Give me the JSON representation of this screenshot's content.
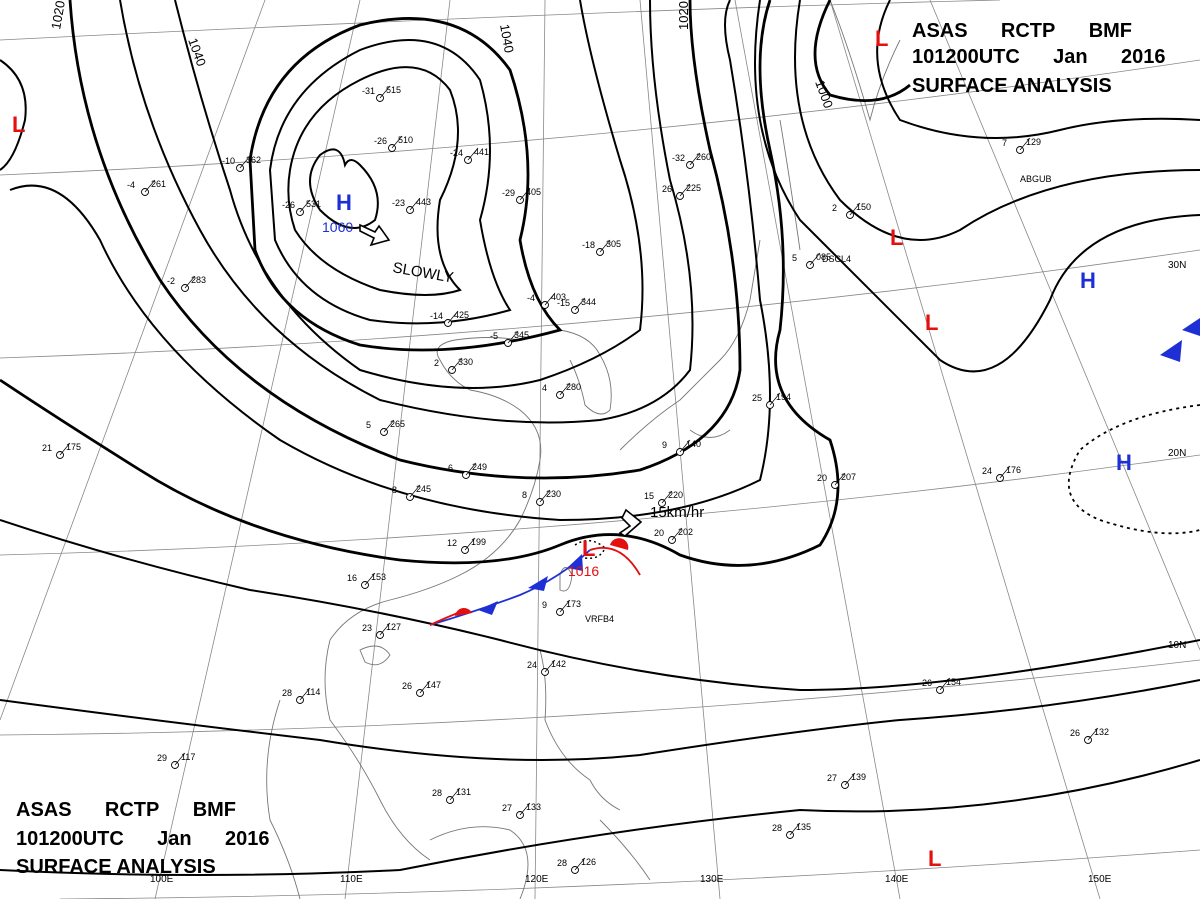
{
  "header": {
    "top_right": {
      "line1": "ASAS RCTP BMF",
      "line2": "101200UTC Jan 2016",
      "line3": "SURFACE ANALYSIS"
    },
    "bottom_left": {
      "line1": "ASAS RCTP BMF",
      "line2": "101200UTC Jan 2016",
      "line3": "SURFACE ANALYSIS"
    }
  },
  "colors": {
    "high": "#1e2fd6",
    "low": "#e31010",
    "isobar": "#000000",
    "grid": "#777777",
    "coast": "#777777"
  },
  "isobar_labels": [
    "1020",
    "1040",
    "1040",
    "1020",
    "1000",
    "1060"
  ],
  "longitude_labels": [
    "100E",
    "110E",
    "120E",
    "130E",
    "140E",
    "150E"
  ],
  "latitude_labels": [
    "30N",
    "20N",
    "10N"
  ],
  "systems": [
    {
      "type": "H",
      "pressure": "1060"
    },
    {
      "type": "L",
      "pressure": "1016"
    },
    {
      "type": "H"
    },
    {
      "type": "H"
    },
    {
      "type": "L"
    },
    {
      "type": "L"
    },
    {
      "type": "L"
    },
    {
      "type": "L"
    }
  ],
  "annotations": {
    "slowly": "SLOWLY",
    "speed": "15km/hr"
  },
  "stations": [
    {
      "temp": "-31",
      "pressure": "515"
    },
    {
      "temp": "-26",
      "pressure": "510"
    },
    {
      "temp": "-26",
      "pressure": "531"
    },
    {
      "temp": "-23",
      "pressure": "443"
    },
    {
      "temp": "-10",
      "pressure": "362"
    },
    {
      "temp": "-4",
      "pressure": "261"
    },
    {
      "temp": "-2",
      "pressure": "283"
    },
    {
      "temp": "-24",
      "pressure": "441"
    },
    {
      "temp": "-29",
      "pressure": "405"
    },
    {
      "temp": "-18",
      "pressure": "305"
    },
    {
      "temp": "-32",
      "pressure": "260"
    },
    {
      "temp": "-14",
      "pressure": "425"
    },
    {
      "temp": "-4",
      "pressure": "403"
    },
    {
      "temp": "-15",
      "pressure": "344"
    },
    {
      "temp": "-5",
      "pressure": "345"
    },
    {
      "temp": "2",
      "pressure": "330"
    },
    {
      "temp": "4",
      "pressure": "280"
    },
    {
      "temp": "5",
      "pressure": "265"
    },
    {
      "temp": "6",
      "pressure": "249"
    },
    {
      "temp": "8",
      "pressure": "245"
    },
    {
      "temp": "8",
      "pressure": "230"
    },
    {
      "temp": "12",
      "pressure": "199"
    },
    {
      "temp": "15",
      "pressure": "220"
    },
    {
      "temp": "20",
      "pressure": "202"
    },
    {
      "temp": "21",
      "pressure": "175"
    },
    {
      "temp": "16",
      "pressure": "153"
    },
    {
      "temp": "23",
      "pressure": "127"
    },
    {
      "temp": "26",
      "pressure": "147"
    },
    {
      "temp": "28",
      "pressure": "114"
    },
    {
      "temp": "24",
      "pressure": "142"
    },
    {
      "temp": "29",
      "pressure": "117"
    },
    {
      "temp": "28",
      "pressure": "131"
    },
    {
      "temp": "28",
      "pressure": "126"
    },
    {
      "temp": "27",
      "pressure": "133"
    },
    {
      "temp": "28",
      "pressure": "135"
    },
    {
      "temp": "27",
      "pressure": "139"
    },
    {
      "temp": "26",
      "pressure": "132"
    },
    {
      "temp": "26",
      "pressure": "154"
    },
    {
      "temp": "24",
      "pressure": "176"
    },
    {
      "temp": "20",
      "pressure": "207"
    },
    {
      "temp": "9",
      "pressure": "173"
    },
    {
      "temp": "25",
      "pressure": "194"
    },
    {
      "temp": "9",
      "pressure": "140"
    },
    {
      "temp": "2",
      "pressure": "150"
    },
    {
      "temp": "7",
      "pressure": "129"
    },
    {
      "temp": "5",
      "pressure": "085"
    },
    {
      "temp": "26",
      "pressure": "225"
    }
  ],
  "station_ids": [
    "ABGUB",
    "DSCL4",
    "VRFB4"
  ]
}
